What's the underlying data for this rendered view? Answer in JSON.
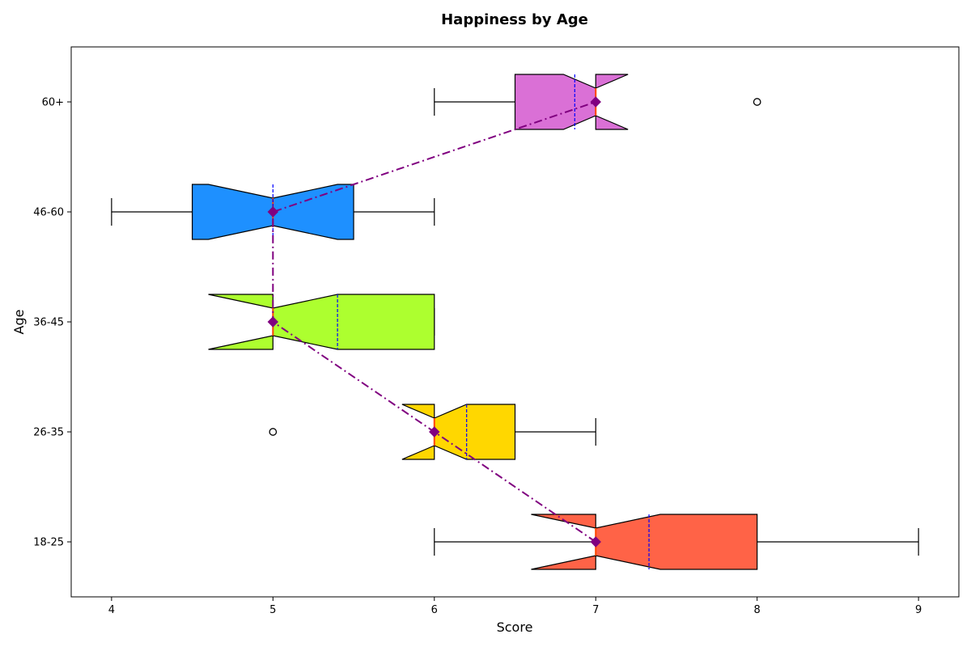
{
  "chart_data": {
    "type": "boxplot",
    "orientation": "horizontal",
    "notched": true,
    "title": "Happiness by Age",
    "xlabel": "Score",
    "ylabel": "Age",
    "xlim": [
      3.75,
      9.25
    ],
    "xticks": [
      4,
      5,
      6,
      7,
      8,
      9
    ],
    "categories": [
      "18-25",
      "26-35",
      "36-45",
      "46-60",
      "60+"
    ],
    "boxes": [
      {
        "label": "18-25",
        "whisker_low": 6,
        "q1": 7,
        "median": 7,
        "q3": 8,
        "whisker_high": 9,
        "mean": 7.33,
        "notch_low": 6.6,
        "notch_high": 7.4,
        "outliers": [],
        "color": "#ff6347"
      },
      {
        "label": "26-35",
        "whisker_low": 6,
        "q1": 6,
        "median": 6,
        "q3": 6.5,
        "whisker_high": 7,
        "mean": 6.2,
        "notch_low": 5.8,
        "notch_high": 6.2,
        "outliers": [
          5
        ],
        "color": "#ffd700"
      },
      {
        "label": "36-45",
        "whisker_low": 5,
        "q1": 5,
        "median": 5,
        "q3": 6,
        "whisker_high": 6,
        "mean": 5.4,
        "notch_low": 4.6,
        "notch_high": 5.4,
        "outliers": [],
        "color": "#adff2f"
      },
      {
        "label": "46-60",
        "whisker_low": 4,
        "q1": 4.5,
        "median": 5,
        "q3": 5.5,
        "whisker_high": 6,
        "mean": 5.0,
        "notch_low": 4.6,
        "notch_high": 5.4,
        "outliers": [],
        "color": "#1e90ff"
      },
      {
        "label": "60+",
        "whisker_low": 6,
        "q1": 6.5,
        "median": 7,
        "q3": 7,
        "whisker_high": 7,
        "mean": 6.87,
        "notch_low": 6.8,
        "notch_high": 7.2,
        "outliers": [
          8
        ],
        "color": "#da70d6"
      }
    ],
    "median_line_color": "#800080",
    "mean_line_color": "#0000ff",
    "grid": false,
    "legend": "none"
  }
}
